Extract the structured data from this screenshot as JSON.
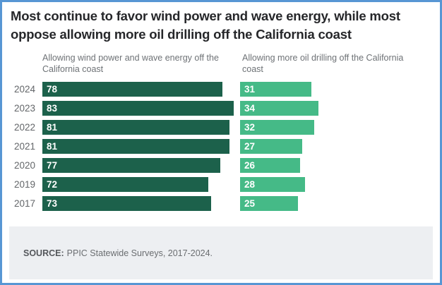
{
  "title": "Most continue to favor wind power and wave energy, while most oppose allowing more oil drilling off the California coast",
  "chart_data": {
    "type": "bar",
    "orientation": "horizontal",
    "title": "Most continue to favor wind power and wave energy, while most oppose allowing more oil drilling off the California coast",
    "categories": [
      "2024",
      "2023",
      "2022",
      "2021",
      "2020",
      "2019",
      "2017"
    ],
    "series": [
      {
        "key": "wind-wave",
        "label": "Allowing wind power and wave energy off the California coast",
        "color": "#1c614b",
        "values": [
          78,
          83,
          81,
          81,
          77,
          72,
          73
        ]
      },
      {
        "key": "oil-drilling",
        "label": "Allowing more oil drilling off the California coast",
        "color": "#45ba87",
        "values": [
          31,
          34,
          32,
          27,
          26,
          28,
          25
        ]
      }
    ],
    "value_labels": "inside-start",
    "xlim": [
      0,
      100
    ],
    "legend_position": "column-headers",
    "grid": false
  },
  "footer": {
    "label": "SOURCE:",
    "text": "PPIC Statewide Surveys, 2017-2024."
  },
  "colors": {
    "frame_border": "#5796d4",
    "favor_bar": "#1c614b",
    "oppose_bar": "#45ba87",
    "footer_bg": "#edeff2"
  }
}
